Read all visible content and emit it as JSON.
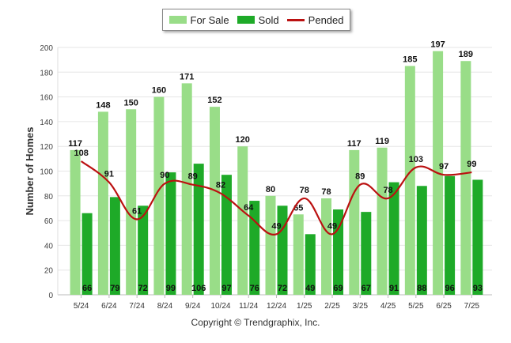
{
  "chart_data": {
    "type": "bar",
    "categories": [
      "5/24",
      "6/24",
      "7/24",
      "8/24",
      "9/24",
      "10/24",
      "11/24",
      "12/24",
      "1/25",
      "2/25",
      "3/25",
      "4/25",
      "5/25",
      "6/25",
      "7/25"
    ],
    "series": [
      {
        "name": "For Sale",
        "kind": "bar",
        "color": "#99dd88",
        "values": [
          117,
          148,
          150,
          160,
          171,
          152,
          120,
          80,
          65,
          78,
          117,
          119,
          185,
          197,
          189
        ]
      },
      {
        "name": "Sold",
        "kind": "bar",
        "color": "#1eaa28",
        "values": [
          66,
          79,
          72,
          99,
          106,
          97,
          76,
          72,
          49,
          69,
          67,
          91,
          88,
          96,
          93
        ]
      },
      {
        "name": "Pended",
        "kind": "line",
        "color": "#bb1111",
        "values": [
          108,
          91,
          61,
          90,
          89,
          82,
          64,
          49,
          78,
          49,
          89,
          78,
          103,
          97,
          99
        ]
      }
    ],
    "ylabel": "Number of Homes",
    "xlabel": "",
    "ylim": [
      0,
      200
    ],
    "yticks": [
      0,
      20,
      40,
      60,
      80,
      100,
      120,
      140,
      160,
      180,
      200
    ],
    "grid": true,
    "legend": "top-center"
  },
  "legend": {
    "for_sale": "For Sale",
    "sold": "Sold",
    "pended": "Pended"
  },
  "footer": {
    "copyright": "Copyright © Trendgraphix, Inc."
  }
}
